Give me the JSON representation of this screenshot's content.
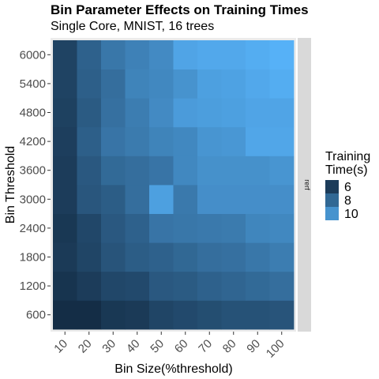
{
  "chart_data": {
    "type": "heatmap",
    "title": "Bin Parameter Effects on Training Times",
    "subtitle": "Single Core, MNIST, 16 trees",
    "xlabel": "Bin Size(%threshold)",
    "ylabel": "Bin Threshold",
    "x_categories": [
      "10",
      "20",
      "30",
      "40",
      "50",
      "60",
      "70",
      "80",
      "90",
      "100"
    ],
    "y_categories": [
      "600",
      "1200",
      "1800",
      "2400",
      "3000",
      "3600",
      "4200",
      "4800",
      "5400",
      "6000"
    ],
    "facet_label": "rerf",
    "legend": {
      "title_lines": [
        "Training",
        "Time(s)"
      ],
      "labels": [
        "6",
        "8",
        "10"
      ],
      "breaks": [
        6,
        8,
        10
      ],
      "range": [
        5.2,
        11.4
      ],
      "low_color": "#132B43",
      "high_color": "#56B1F7",
      "placement": "right"
    },
    "z": [
      [
        5.3,
        5.3,
        5.8,
        5.9,
        6.4,
        6.6,
        6.8,
        7.0,
        7.0,
        7.1
      ],
      [
        5.6,
        6.0,
        6.5,
        6.6,
        7.3,
        7.4,
        7.7,
        7.9,
        8.1,
        8.3
      ],
      [
        5.9,
        6.4,
        7.1,
        7.5,
        7.7,
        8.0,
        8.3,
        8.4,
        8.7,
        9.0
      ],
      [
        5.8,
        6.5,
        7.3,
        7.7,
        8.6,
        8.7,
        8.8,
        8.9,
        9.4,
        9.5
      ],
      [
        6.0,
        7.2,
        7.5,
        8.3,
        10.6,
        8.8,
        9.8,
        9.8,
        9.8,
        9.8
      ],
      [
        6.0,
        7.3,
        8.1,
        8.3,
        8.6,
        9.5,
        9.9,
        9.9,
        9.9,
        10.1
      ],
      [
        6.1,
        7.6,
        8.6,
        8.9,
        9.3,
        9.5,
        10.1,
        10.2,
        10.9,
        10.9
      ],
      [
        6.2,
        7.4,
        8.4,
        9.0,
        9.6,
        10.4,
        10.5,
        10.6,
        10.8,
        10.8
      ],
      [
        6.3,
        7.6,
        8.3,
        9.3,
        9.5,
        10.0,
        10.6,
        10.7,
        11.0,
        11.2
      ],
      [
        6.3,
        7.7,
        8.7,
        9.2,
        9.6,
        10.8,
        11.0,
        11.0,
        11.2,
        11.4
      ]
    ]
  }
}
